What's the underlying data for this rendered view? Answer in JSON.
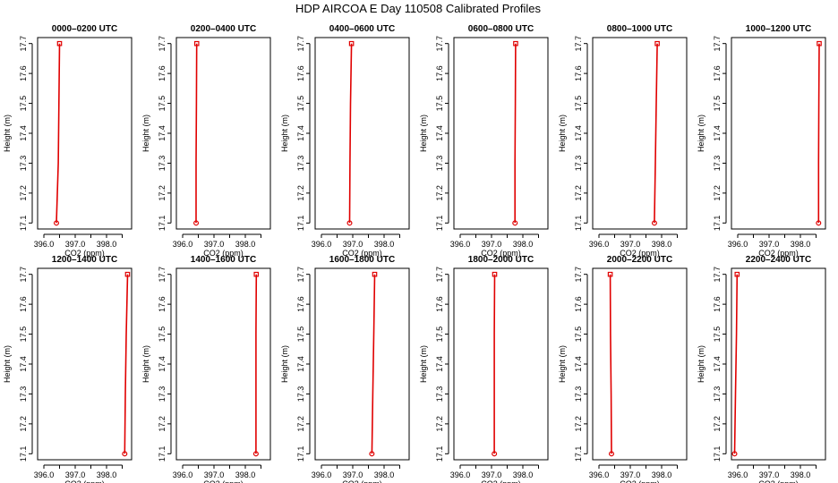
{
  "title": "HDP AIRCOA E  Day 110508  Calibrated Profiles",
  "colors": {
    "profile": "#e00000",
    "axis": "#000000"
  },
  "chart_data": {
    "type": "line",
    "xlabel": "CO2 (ppm)",
    "ylabel": "Height (m)",
    "xlim": [
      395.8,
      398.8
    ],
    "ylim": [
      17.08,
      17.72
    ],
    "xticks": [
      396.0,
      396.5,
      397.0,
      397.5,
      398.0,
      398.5
    ],
    "xtick_labels": [
      "396.0",
      "",
      "397.0",
      "",
      "398.0",
      ""
    ],
    "yticks": [
      17.1,
      17.2,
      17.3,
      17.4,
      17.5,
      17.6,
      17.7
    ],
    "ytick_labels": [
      "17.1",
      "17.2",
      "17.3",
      "17.4",
      "17.5",
      "17.6",
      "17.7"
    ],
    "panels": [
      {
        "title": "0000–0200 UTC",
        "x": [
          396.4,
          396.46,
          396.48,
          396.5
        ],
        "y": [
          17.1,
          17.3,
          17.5,
          17.7
        ]
      },
      {
        "title": "0200–0400 UTC",
        "x": [
          396.43,
          396.43,
          396.44,
          396.45
        ],
        "y": [
          17.1,
          17.3,
          17.5,
          17.7
        ]
      },
      {
        "title": "0400–0600 UTC",
        "x": [
          396.9,
          396.91,
          396.93,
          396.96
        ],
        "y": [
          17.1,
          17.3,
          17.5,
          17.7
        ]
      },
      {
        "title": "0600–0800 UTC",
        "x": [
          397.75,
          397.75,
          397.76,
          397.77
        ],
        "y": [
          17.1,
          17.3,
          17.5,
          17.7
        ]
      },
      {
        "title": "0800–1000 UTC",
        "x": [
          397.77,
          397.8,
          397.83,
          397.86
        ],
        "y": [
          17.1,
          17.3,
          17.5,
          17.7
        ]
      },
      {
        "title": "1000–1200 UTC",
        "x": [
          398.58,
          398.58,
          398.59,
          398.6
        ],
        "y": [
          17.1,
          17.3,
          17.5,
          17.7
        ]
      },
      {
        "title": "1200–1400 UTC",
        "x": [
          398.58,
          398.6,
          398.63,
          398.67
        ],
        "y": [
          17.1,
          17.3,
          17.5,
          17.7
        ]
      },
      {
        "title": "1400–1600 UTC",
        "x": [
          398.34,
          398.34,
          398.34,
          398.35
        ],
        "y": [
          17.1,
          17.3,
          17.5,
          17.7
        ]
      },
      {
        "title": "1600–1800 UTC",
        "x": [
          397.61,
          397.64,
          397.67,
          397.7
        ],
        "y": [
          17.1,
          17.3,
          17.5,
          17.7
        ]
      },
      {
        "title": "1800–2000 UTC",
        "x": [
          397.09,
          397.09,
          397.09,
          397.1
        ],
        "y": [
          17.1,
          17.3,
          17.5,
          17.7
        ]
      },
      {
        "title": "2000–2200 UTC",
        "x": [
          396.4,
          396.39,
          396.37,
          396.36
        ],
        "y": [
          17.1,
          17.3,
          17.5,
          17.7
        ]
      },
      {
        "title": "2200–2400 UTC",
        "x": [
          395.9,
          395.93,
          395.96,
          395.98
        ],
        "y": [
          17.1,
          17.3,
          17.5,
          17.7
        ]
      }
    ]
  }
}
